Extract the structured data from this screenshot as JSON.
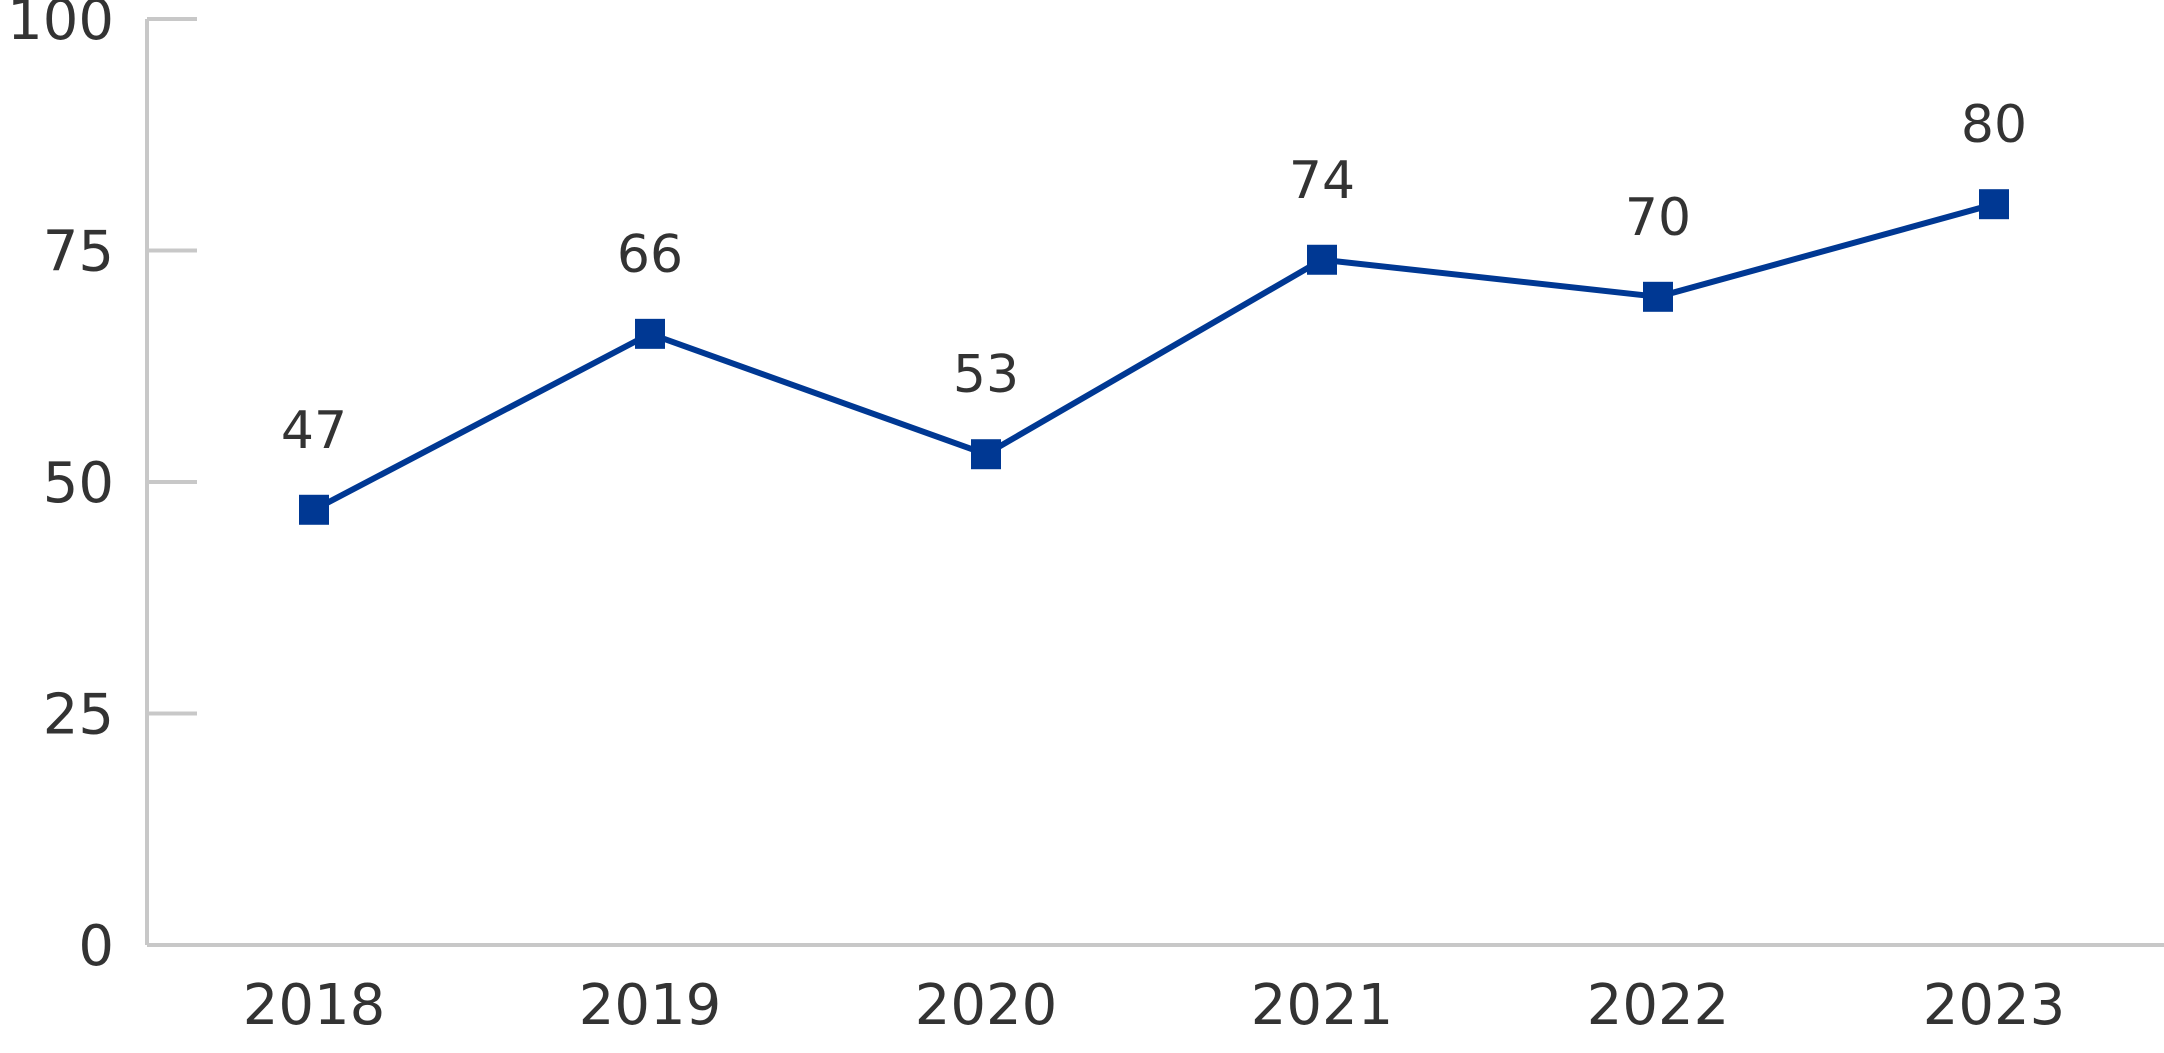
{
  "colors": {
    "series": "#003893",
    "axis": "#c8c8c8",
    "text": "#333333"
  },
  "chart_data": {
    "type": "line",
    "title": "",
    "xlabel": "",
    "ylabel": "",
    "x": [
      "2018",
      "2019",
      "2020",
      "2021",
      "2022",
      "2023"
    ],
    "series": [
      {
        "values": [
          47,
          66,
          53,
          74,
          70,
          80
        ],
        "marker": "square"
      }
    ],
    "data_labels": [
      "47",
      "66",
      "53",
      "74",
      "70",
      "80"
    ],
    "yticks": [
      "0",
      "25",
      "50",
      "75",
      "100"
    ],
    "ylim": [
      0,
      100
    ],
    "grid": false,
    "legend": "none"
  }
}
